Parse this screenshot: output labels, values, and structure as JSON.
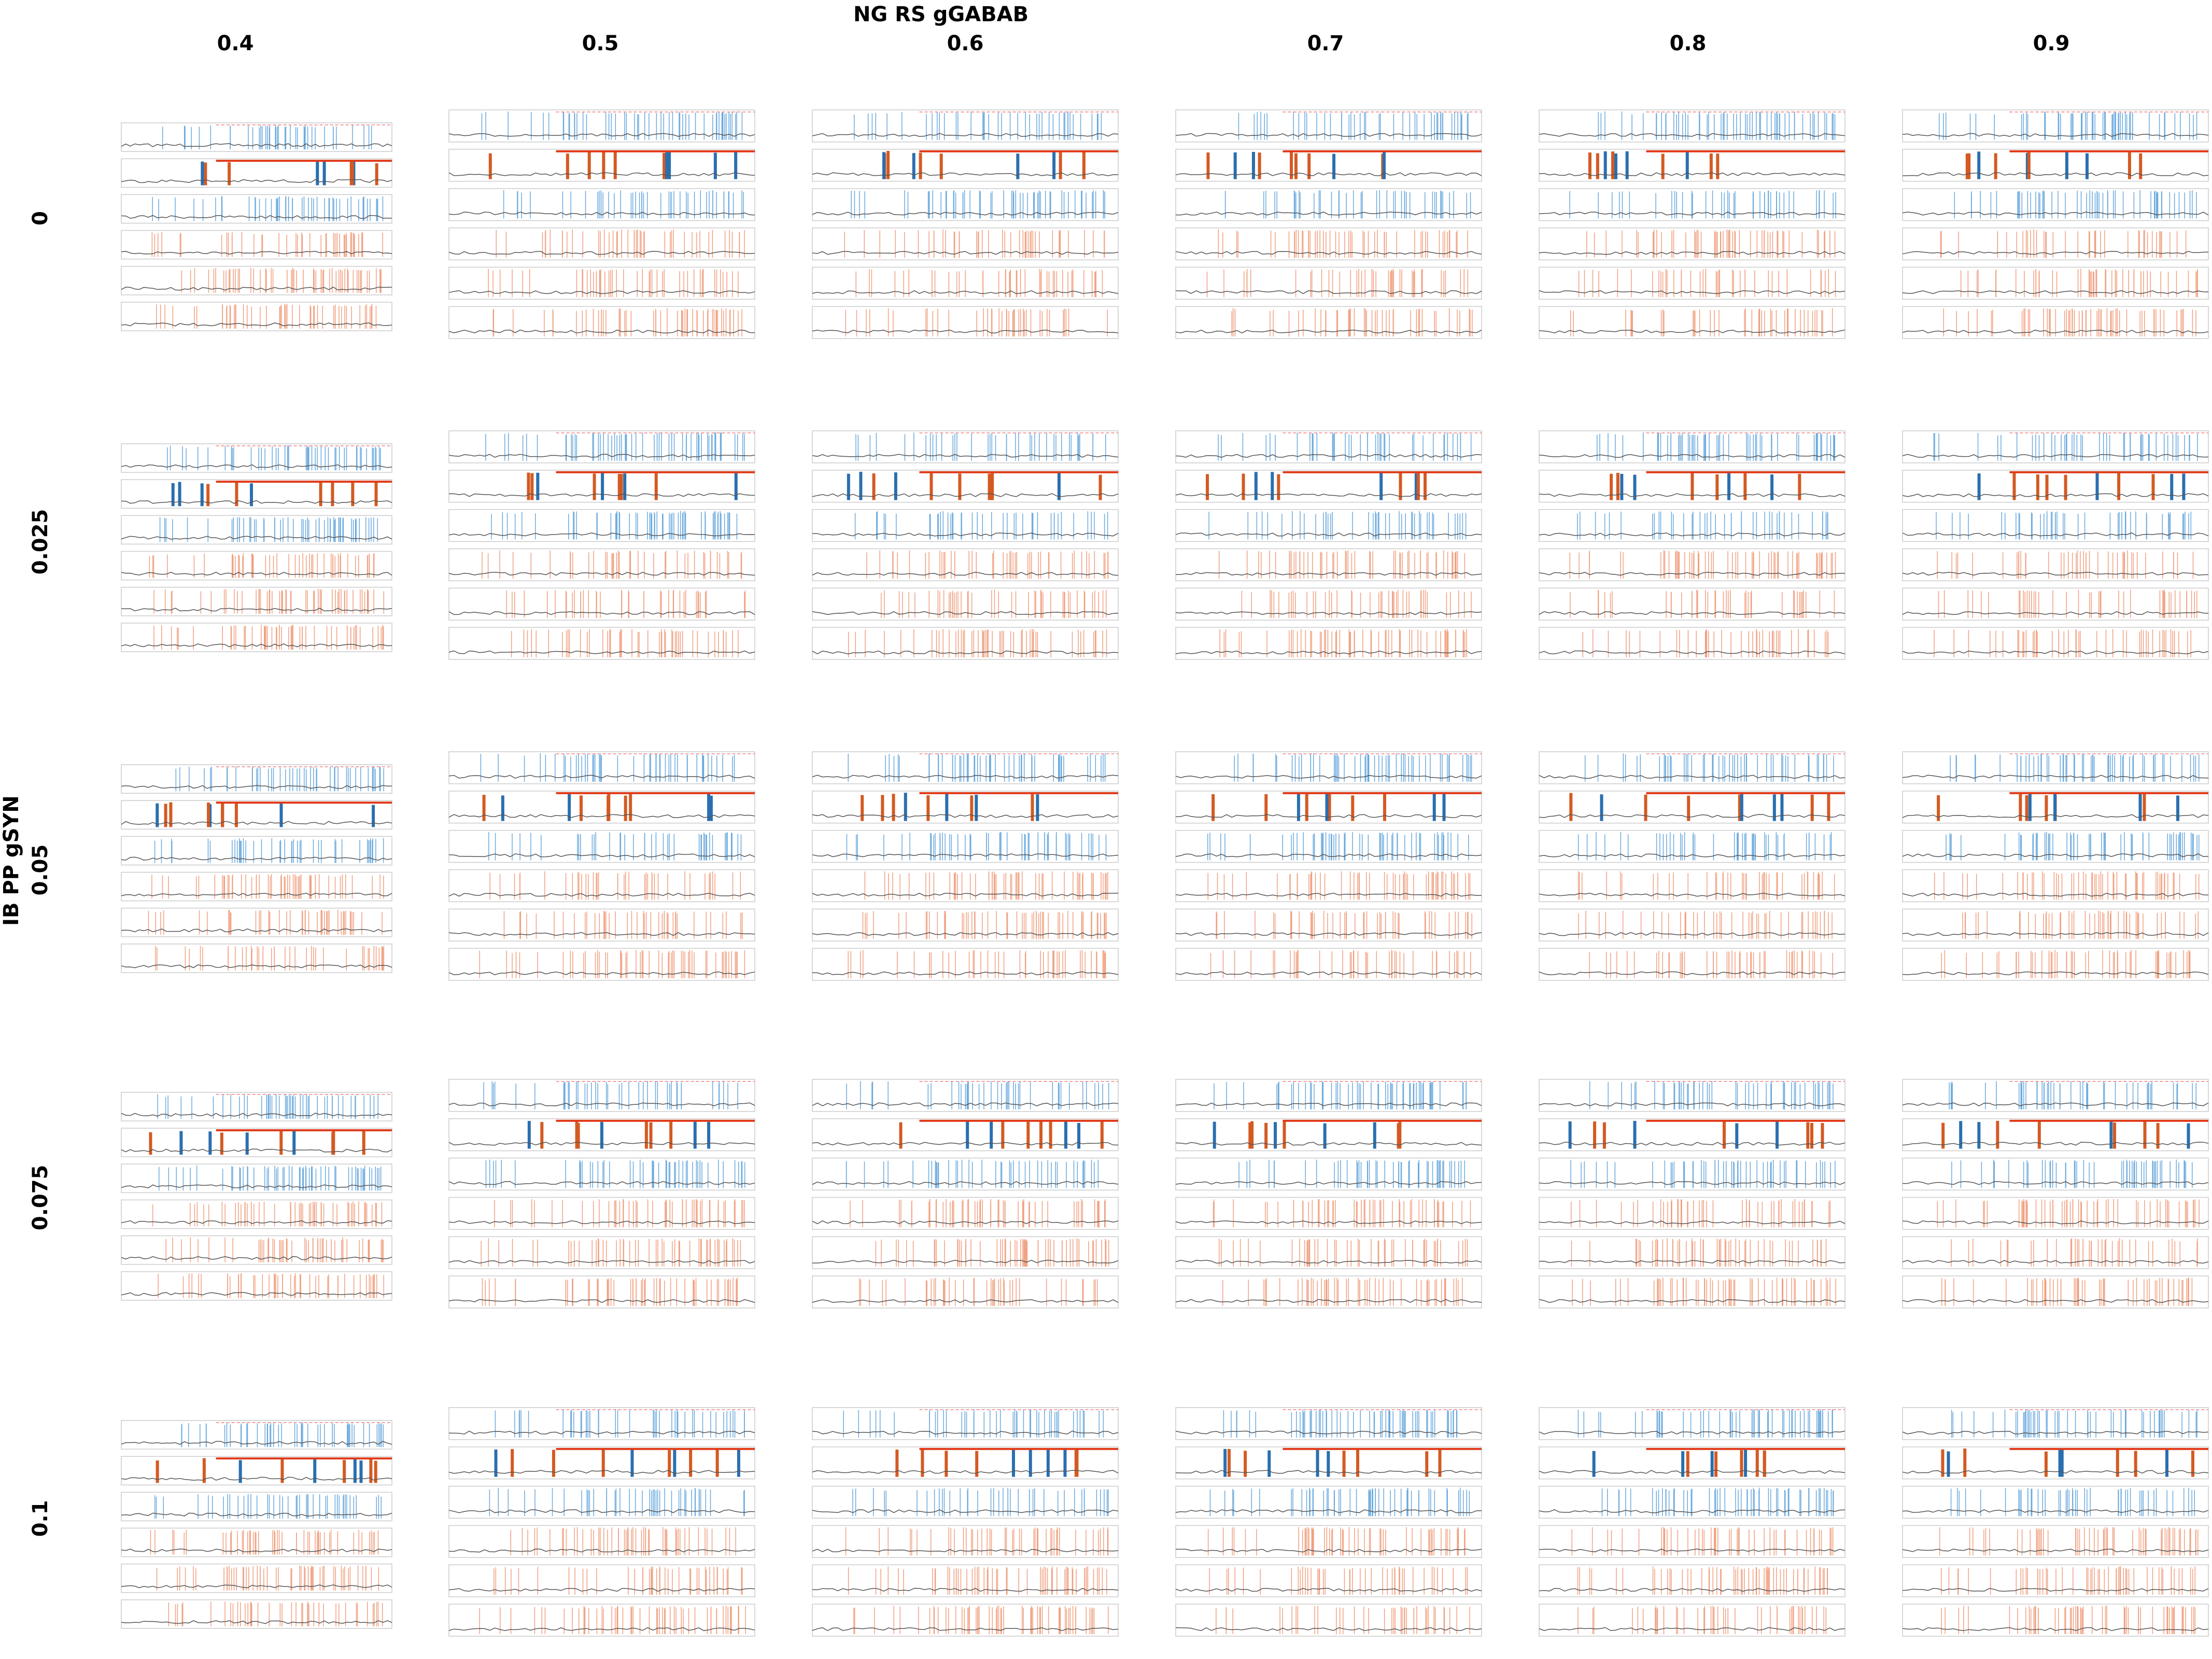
{
  "header": {
    "title": "NG RS gGABAB",
    "columns": [
      "0.4",
      "0.5",
      "0.6",
      "0.7",
      "0.8",
      "0.9"
    ]
  },
  "rows": {
    "title": "IB PP gSYN",
    "labels": [
      "0",
      "0.025",
      "0.05",
      "0.075",
      "0.1"
    ]
  }
}
